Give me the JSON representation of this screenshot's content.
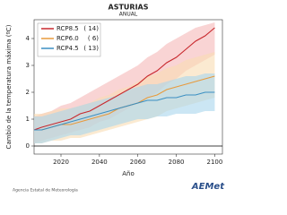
{
  "chart_data": {
    "type": "line",
    "title": "ASTURIAS",
    "subtitle": "ANUAL",
    "x_label": "Año",
    "y_label": "Cambio de la temperatura máxima (ºC)",
    "x": [
      2006,
      2010,
      2015,
      2020,
      2025,
      2030,
      2035,
      2040,
      2045,
      2050,
      2055,
      2060,
      2065,
      2070,
      2075,
      2080,
      2085,
      2090,
      2095,
      2100
    ],
    "xlim": [
      2006,
      2104
    ],
    "xticks": [
      2020,
      2040,
      2060,
      2080,
      2100
    ],
    "ylim": [
      -0.3,
      4.7
    ],
    "yticks": [
      0,
      1,
      2,
      3,
      4
    ],
    "zero_line": true,
    "legend": "top-left",
    "series": [
      {
        "name": "RCP8.5",
        "count_label": "( 14)",
        "color": "#c8282d",
        "band_color": "#f5b8b8",
        "values": [
          0.6,
          0.7,
          0.8,
          0.9,
          1.0,
          1.2,
          1.3,
          1.5,
          1.7,
          1.9,
          2.1,
          2.3,
          2.6,
          2.8,
          3.1,
          3.3,
          3.6,
          3.9,
          4.1,
          4.4
        ],
        "upper": [
          1.1,
          1.2,
          1.3,
          1.5,
          1.6,
          1.8,
          2.0,
          2.2,
          2.4,
          2.6,
          2.8,
          3.0,
          3.3,
          3.5,
          3.8,
          4.0,
          4.2,
          4.4,
          4.5,
          4.6
        ],
        "lower": [
          0.1,
          0.2,
          0.3,
          0.4,
          0.5,
          0.6,
          0.7,
          0.9,
          1.0,
          1.2,
          1.4,
          1.6,
          1.8,
          2.0,
          2.3,
          2.5,
          2.8,
          3.0,
          3.2,
          3.4
        ]
      },
      {
        "name": "RCP6.0",
        "count_label": "(  6)",
        "color": "#e89a3c",
        "band_color": "#f9dcb2",
        "values": [
          0.6,
          0.6,
          0.7,
          0.8,
          0.8,
          0.9,
          1.0,
          1.1,
          1.2,
          1.4,
          1.5,
          1.6,
          1.8,
          1.9,
          2.1,
          2.2,
          2.3,
          2.4,
          2.5,
          2.6
        ],
        "upper": [
          1.2,
          1.2,
          1.3,
          1.4,
          1.4,
          1.5,
          1.6,
          1.8,
          1.9,
          2.1,
          2.2,
          2.4,
          2.6,
          2.7,
          2.9,
          3.0,
          3.2,
          3.3,
          3.4,
          3.5
        ],
        "lower": [
          0.1,
          0.1,
          0.2,
          0.2,
          0.3,
          0.3,
          0.4,
          0.5,
          0.6,
          0.7,
          0.8,
          0.9,
          1.0,
          1.1,
          1.3,
          1.4,
          1.5,
          1.6,
          1.7,
          1.8
        ]
      },
      {
        "name": "RCP4.5",
        "count_label": "( 13)",
        "color": "#3a8fc2",
        "band_color": "#a9d5ec",
        "values": [
          0.6,
          0.6,
          0.7,
          0.8,
          0.9,
          1.0,
          1.1,
          1.2,
          1.3,
          1.4,
          1.5,
          1.6,
          1.7,
          1.7,
          1.8,
          1.8,
          1.9,
          1.9,
          2.0,
          2.0
        ],
        "upper": [
          1.1,
          1.1,
          1.2,
          1.3,
          1.4,
          1.5,
          1.6,
          1.7,
          1.8,
          1.9,
          2.1,
          2.2,
          2.3,
          2.3,
          2.4,
          2.5,
          2.6,
          2.6,
          2.7,
          2.7
        ],
        "lower": [
          0.1,
          0.1,
          0.2,
          0.3,
          0.4,
          0.4,
          0.5,
          0.6,
          0.7,
          0.8,
          0.9,
          1.0,
          1.0,
          1.1,
          1.1,
          1.2,
          1.2,
          1.2,
          1.3,
          1.3
        ]
      }
    ]
  },
  "footer": {
    "agency": "Agencia Estatal de Meteorología",
    "logo": "AEMet"
  }
}
